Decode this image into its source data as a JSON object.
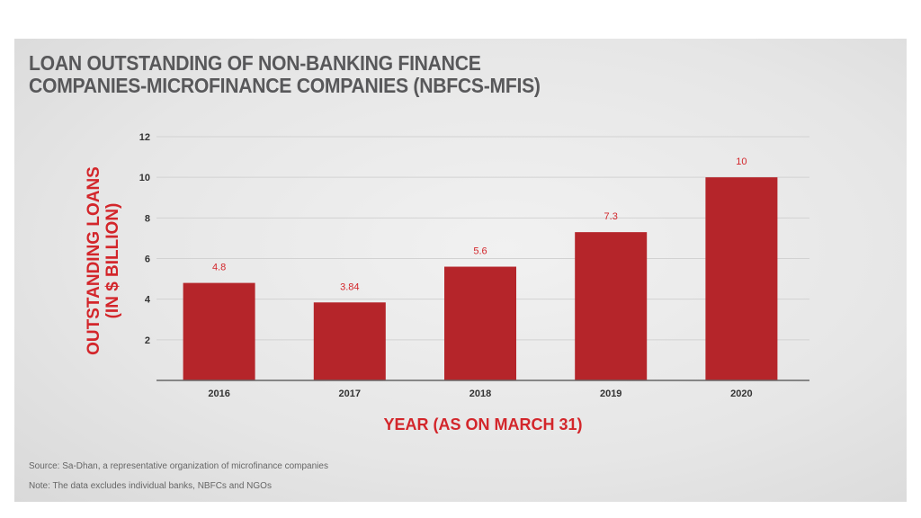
{
  "chart_data": {
    "type": "bar",
    "title": "LOAN OUTSTANDING OF NON-BANKING FINANCE COMPANIES-MICROFINANCE COMPANIES (NBFCS-MFIS)",
    "title_lines": [
      "LOAN OUTSTANDING OF NON-BANKING FINANCE",
      "COMPANIES-MICROFINANCE COMPANIES (NBFCS-MFIS)"
    ],
    "xlabel": "YEAR (AS ON MARCH 31)",
    "ylabel_lines": [
      "OUTSTANDING LOANS",
      "(IN $ BILLION)"
    ],
    "categories": [
      "2016",
      "2017",
      "2018",
      "2019",
      "2020"
    ],
    "values": [
      4.8,
      3.84,
      5.6,
      7.3,
      10
    ],
    "data_labels": [
      "4.8",
      "3.84",
      "5.6",
      "7.3",
      "10"
    ],
    "yticks": [
      2,
      4,
      6,
      8,
      10,
      12
    ],
    "ylim": [
      0,
      12
    ],
    "grid": true,
    "bar_color": "#b5252a",
    "label_color": "#d3262b"
  },
  "footer": {
    "source": "Source: Sa-Dhan, a representative organization of microfinance companies",
    "note": "Note: The data excludes individual banks, NBFCs and NGOs"
  }
}
